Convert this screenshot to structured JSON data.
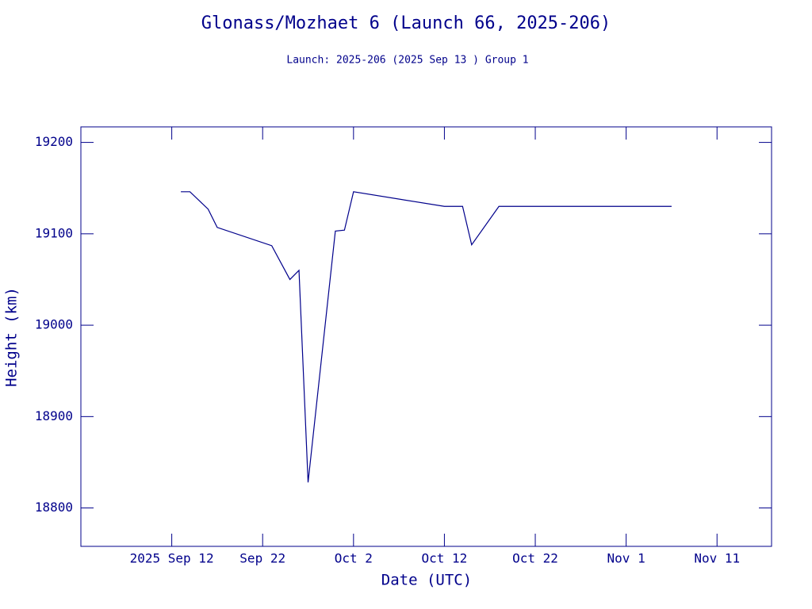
{
  "chart_data": {
    "type": "line",
    "title": "Glonass/Mozhaet 6 (Launch 66, 2025-206)",
    "subtitle": "Launch: 2025-206  (2025 Sep 13 )  Group 1",
    "x_label": "Date (UTC)",
    "y_label": "Height (km)",
    "x": [
      "2025-09-13",
      "2025-09-14",
      "2025-09-16",
      "2025-09-17",
      "2025-09-23",
      "2025-09-25",
      "2025-09-26",
      "2025-09-27",
      "2025-09-30",
      "2025-10-01",
      "2025-10-02",
      "2025-10-12",
      "2025-10-14",
      "2025-10-15",
      "2025-10-18",
      "2025-11-06"
    ],
    "series": [
      {
        "color": "#00008b",
        "values": [
          19146,
          19146,
          19127,
          19107,
          19087,
          19050,
          19060,
          18828,
          19103,
          19104,
          19146,
          19130,
          19130,
          19088,
          19130,
          19130
        ]
      }
    ],
    "xlim": [
      "2025-09-02",
      "2025-11-17"
    ],
    "xticks": [
      {
        "value": "2025-09-12",
        "label": "2025 Sep 12"
      },
      {
        "value": "2025-09-22",
        "label": "Sep 22"
      },
      {
        "value": "2025-10-02",
        "label": "Oct  2"
      },
      {
        "value": "2025-10-12",
        "label": "Oct 12"
      },
      {
        "value": "2025-10-22",
        "label": "Oct 22"
      },
      {
        "value": "2025-11-01",
        "label": "Nov  1"
      },
      {
        "value": "2025-11-11",
        "label": "Nov 11"
      }
    ],
    "ylim": [
      18758,
      19217
    ],
    "yticks": [
      18800,
      18900,
      19000,
      19100,
      19200
    ]
  }
}
